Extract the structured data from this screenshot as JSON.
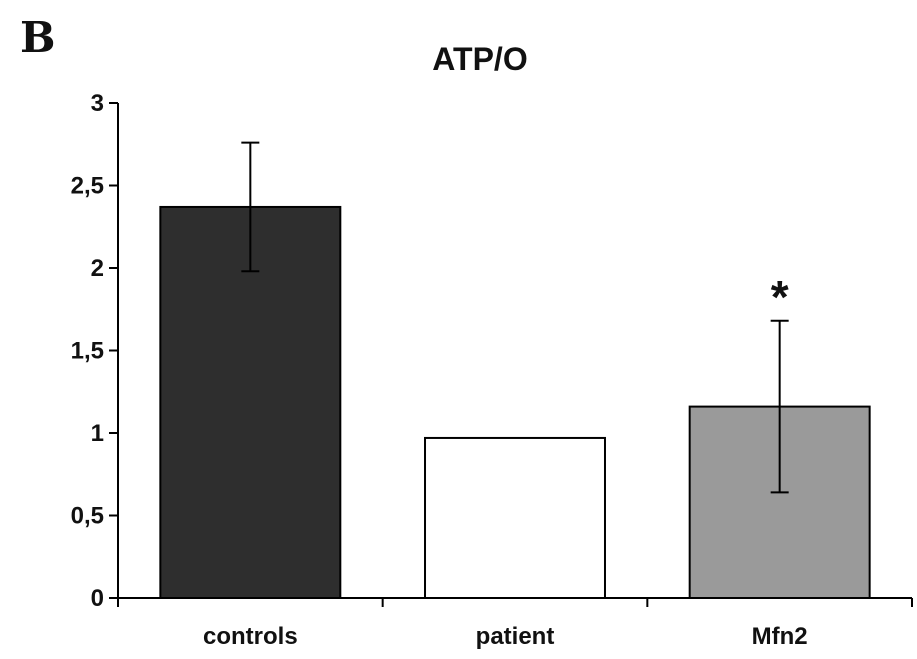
{
  "panel_label": "B",
  "chart_data": {
    "type": "bar",
    "title": "ATP/O",
    "xlabel": "",
    "ylabel": "",
    "ylim": [
      0,
      3
    ],
    "yticks": [
      "0",
      "0,5",
      "1",
      "1,5",
      "2",
      "2,5",
      "3"
    ],
    "ytick_values": [
      0,
      0.5,
      1,
      1.5,
      2,
      2.5,
      3
    ],
    "categories": [
      "controls",
      "patient",
      "Mfn2"
    ],
    "values": [
      2.37,
      0.97,
      1.16
    ],
    "errors": [
      0.39,
      null,
      0.52
    ],
    "colors": [
      "#2e2e2e",
      "#ffffff",
      "#9a9a9a"
    ],
    "annotations": [
      {
        "category": "Mfn2",
        "text": "*"
      }
    ],
    "grid": false,
    "legend": "none"
  }
}
